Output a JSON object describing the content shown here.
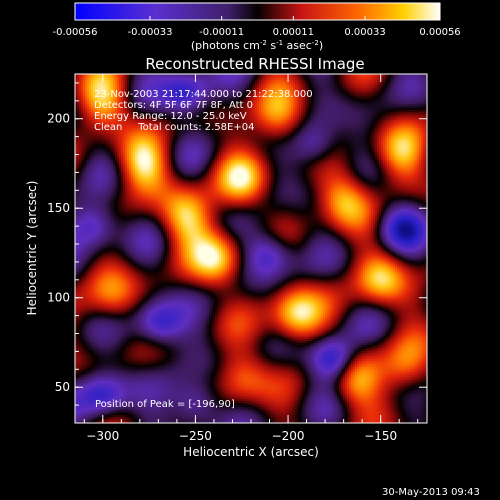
{
  "chart_data": {
    "type": "heatmap",
    "title": "Reconstructed RHESSI Image",
    "xlabel": "Heliocentric X (arcsec)",
    "ylabel": "Heliocentric Y (arcsec)",
    "xlim": [
      -315,
      -125
    ],
    "ylim": [
      30,
      225
    ],
    "xticks": [
      -300,
      -250,
      -200,
      -150
    ],
    "yticks": [
      50,
      100,
      150,
      200
    ],
    "colorbar": {
      "min": -0.00056,
      "max": 0.00056,
      "tick_labels": [
        "-0.00056",
        "-0.00033",
        "-0.00011",
        "0.00011",
        "0.00033",
        "0.00056"
      ],
      "units_text": "(photons cm",
      "units_parts": [
        "-2",
        " s",
        "-1",
        " asec",
        "-2",
        ")"
      ]
    },
    "annotations": [
      "23-Nov-2003 21:17:44.000 to 21:22:38.000",
      "Detectors: 4F 5F 6F 7F 8F, Att 0",
      "Energy Range: 12.0 - 25.0 keV",
      "Clean     Total counts: 2.58E+04"
    ],
    "peak_label": "Position of Peak = [-196,90]",
    "peak": [
      -196,
      90
    ],
    "footer_date": "30-May-2013 09:43"
  },
  "bright_blobs": [
    {
      "x": -278,
      "y": 175,
      "amp": 1.0
    },
    {
      "x": -255,
      "y": 145,
      "amp": 0.95
    },
    {
      "x": -238,
      "y": 122,
      "amp": 1.0
    },
    {
      "x": -205,
      "y": 200,
      "amp": 0.9
    },
    {
      "x": -196,
      "y": 90,
      "amp": 1.15
    },
    {
      "x": -170,
      "y": 155,
      "amp": 0.95
    },
    {
      "x": -225,
      "y": 165,
      "amp": 0.85
    },
    {
      "x": -150,
      "y": 110,
      "amp": 0.9
    },
    {
      "x": -140,
      "y": 180,
      "amp": 0.8
    },
    {
      "x": -165,
      "y": 55,
      "amp": 0.95
    },
    {
      "x": -225,
      "y": 55,
      "amp": 0.7
    },
    {
      "x": -295,
      "y": 100,
      "amp": 0.7
    },
    {
      "x": -300,
      "y": 210,
      "amp": 0.9
    },
    {
      "x": -135,
      "y": 60,
      "amp": 0.75
    }
  ],
  "dark_blobs": [
    {
      "x": -255,
      "y": 215,
      "amp": 1.0
    },
    {
      "x": -305,
      "y": 140,
      "amp": 0.9
    },
    {
      "x": -270,
      "y": 85,
      "amp": 1.0
    },
    {
      "x": -210,
      "y": 125,
      "amp": 0.9
    },
    {
      "x": -175,
      "y": 65,
      "amp": 1.3
    },
    {
      "x": -250,
      "y": 40,
      "amp": 0.9
    },
    {
      "x": -140,
      "y": 140,
      "amp": 0.8
    },
    {
      "x": -185,
      "y": 185,
      "amp": 0.8
    },
    {
      "x": -300,
      "y": 45,
      "amp": 0.9
    }
  ]
}
